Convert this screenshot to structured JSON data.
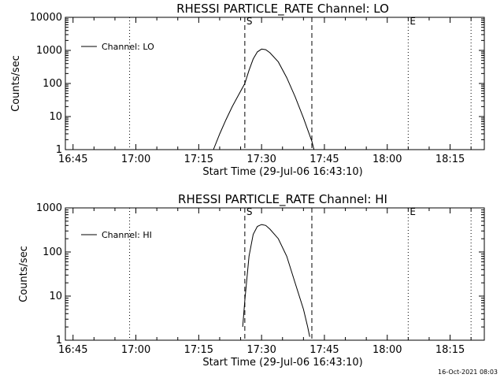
{
  "chart_data": [
    {
      "type": "line",
      "title": "RHESSI PARTICLE_RATE Channel: LO",
      "xlabel": "Start Time (29-Jul-06 16:43:10)",
      "ylabel": "Counts/sec",
      "yscale": "log",
      "ylim": [
        1,
        10000
      ],
      "xlim_minutes_after_start": [
        0,
        100
      ],
      "x_tick_labels": [
        "16:45",
        "17:00",
        "17:15",
        "17:30",
        "17:45",
        "18:00",
        "18:15"
      ],
      "y_tick_labels": [
        "1",
        "10",
        "100",
        "1000",
        "10000"
      ],
      "legend": "top-left",
      "series": [
        {
          "name": "Channel: LO",
          "x": [
            "17:18:30",
            "17:20:00",
            "17:21:30",
            "17:23:00",
            "17:24:30",
            "17:26:00",
            "17:27:00",
            "17:28:00",
            "17:29:00",
            "17:30:00",
            "17:31:00",
            "17:32:00",
            "17:34:00",
            "17:36:00",
            "17:38:00",
            "17:40:00",
            "17:41:00",
            "17:42:00",
            "17:42:30"
          ],
          "y": [
            1,
            3,
            8,
            20,
            45,
            100,
            250,
            550,
            900,
            1100,
            1050,
            850,
            450,
            150,
            40,
            9,
            4,
            1.8,
            1
          ]
        }
      ],
      "markers": [
        {
          "label": "S",
          "time": "17:26:00",
          "style": "dashed"
        },
        {
          "label": "",
          "time": "17:42:00",
          "style": "dashed"
        },
        {
          "label": "E",
          "time": "18:05:00",
          "style": "dotted"
        },
        {
          "label": "",
          "time": "16:58:30",
          "style": "dotted"
        },
        {
          "label": "",
          "time": "18:20:00",
          "style": "dotted"
        }
      ]
    },
    {
      "type": "line",
      "title": "RHESSI PARTICLE_RATE Channel: HI",
      "xlabel": "Start Time (29-Jul-06 16:43:10)",
      "ylabel": "Counts/sec",
      "yscale": "log",
      "ylim": [
        1,
        1000
      ],
      "xlim_minutes_after_start": [
        0,
        100
      ],
      "x_tick_labels": [
        "16:45",
        "17:00",
        "17:15",
        "17:30",
        "17:45",
        "18:00",
        "18:15"
      ],
      "y_tick_labels": [
        "1",
        "10",
        "100",
        "1000"
      ],
      "legend": "top-left",
      "series": [
        {
          "name": "Channel: HI",
          "x": [
            "17:25:30",
            "17:26:00",
            "17:27:00",
            "17:28:00",
            "17:29:00",
            "17:30:00",
            "17:31:00",
            "17:32:00",
            "17:34:00",
            "17:36:00",
            "17:38:00",
            "17:40:00",
            "17:41:00",
            "17:41:30"
          ],
          "y": [
            2,
            8,
            80,
            250,
            380,
            420,
            400,
            330,
            200,
            80,
            20,
            5,
            2,
            1.2
          ]
        }
      ],
      "markers": [
        {
          "label": "S",
          "time": "17:26:00",
          "style": "dashed"
        },
        {
          "label": "",
          "time": "17:42:00",
          "style": "dashed"
        },
        {
          "label": "E",
          "time": "18:05:00",
          "style": "dotted"
        },
        {
          "label": "",
          "time": "16:58:30",
          "style": "dotted"
        },
        {
          "label": "",
          "time": "18:20:00",
          "style": "dotted"
        }
      ]
    }
  ],
  "timestamp": "16-Oct-2021 08:03"
}
